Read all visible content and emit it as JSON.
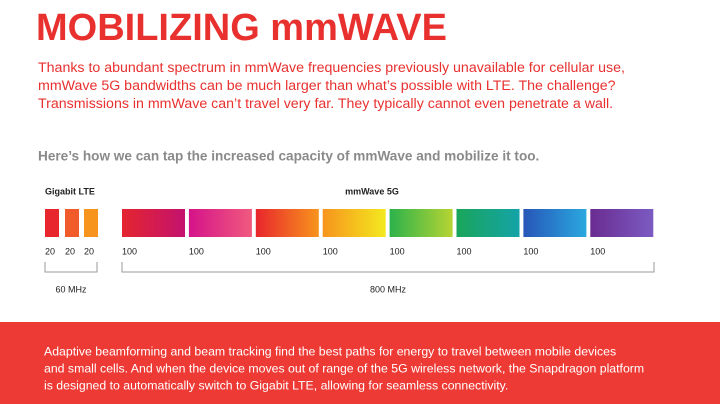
{
  "title": "MOBILIZING mmWAVE",
  "intro": [
    "Thanks to abundant spectrum in mmWave frequencies previously unavailable for cellular use,",
    "mmWave 5G bandwidths can be much larger than what’s possible with LTE. The challenge?",
    "Transmissions in mmWave can’t travel very far. They typically cannot even penetrate a wall."
  ],
  "subtitle": "Here’s how we can tap the increased capacity of mmWave and mobilize it too.",
  "lte": {
    "label": "Gigabit LTE",
    "bands": [
      20,
      20,
      20
    ],
    "total": "60 MHz"
  },
  "mmwave": {
    "label": "mmWave 5G",
    "bands": [
      100,
      100,
      100,
      100,
      100,
      100,
      100,
      100
    ],
    "total": "800 MHz"
  },
  "footer": [
    "Adaptive beamforming and beam tracking find the best paths for energy to travel between mobile devices",
    "and small cells. And when the device moves out of range of the 5G wireless network, the Snapdragon platform",
    "is designed to automatically switch to Gigabit LTE, allowing for seamless connectivity."
  ]
}
